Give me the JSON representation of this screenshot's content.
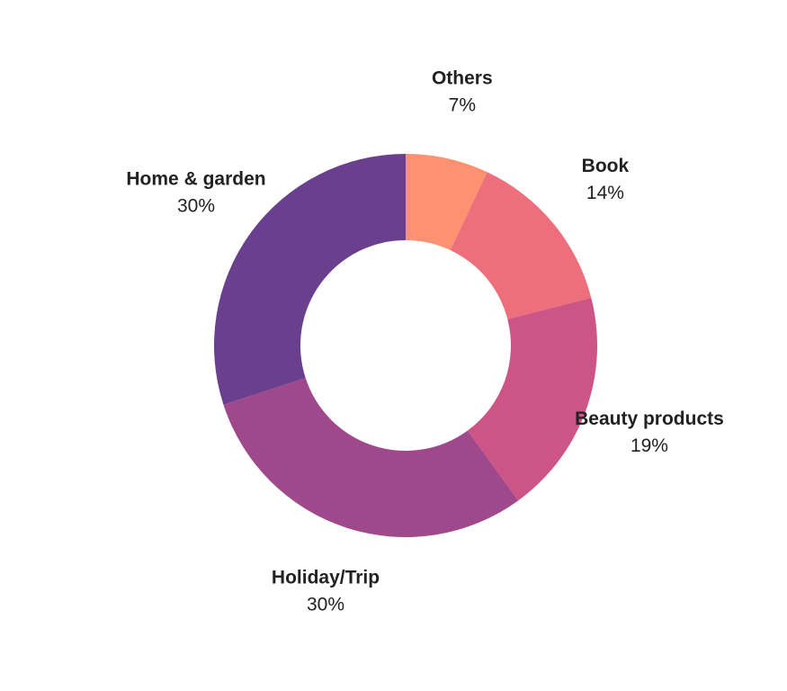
{
  "chart_data": {
    "type": "pie",
    "donut": true,
    "categories": [
      "Others",
      "Book",
      "Beauty products",
      "Holiday/Trip",
      "Home & garden"
    ],
    "values": [
      7,
      14,
      19,
      30,
      30
    ],
    "value_labels": [
      "7%",
      "14%",
      "19%",
      "30%",
      "30%"
    ],
    "colors": [
      "#fd9171",
      "#ec6f7b",
      "#cd5486",
      "#a0488c",
      "#6a3f8e"
    ]
  }
}
